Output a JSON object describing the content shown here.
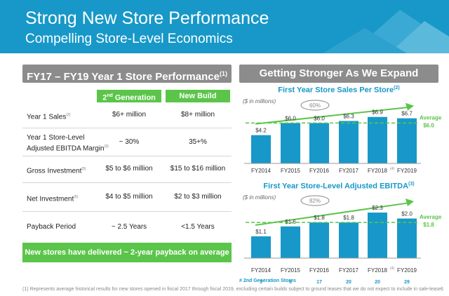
{
  "header": {
    "title": "Strong New Store Performance",
    "subtitle": "Compelling Store-Level Economics"
  },
  "left_panel": {
    "title": "FY17 – FY19 Year 1 Store Performance",
    "title_note": "(1)",
    "col_a": {
      "text": "2",
      "sup": "nd",
      "rest": " Generation"
    },
    "col_b": "New Build",
    "rows": [
      {
        "label": "Year 1 Sales",
        "note": "(2)",
        "a": "$6+ million",
        "b": "$8+ million"
      },
      {
        "label": "Year 1 Store-Level",
        "label2": "Adjusted EBITDA Margin",
        "note": "(3)",
        "a": "~ 30%",
        "b": "35+%"
      },
      {
        "label": "Gross Investment",
        "note": "(5)",
        "a": "$5 to $6 million",
        "b": "$15 to $16 million"
      },
      {
        "label": "Net Investment",
        "note": "(5)",
        "a": "$4 to $5 million",
        "b": "$2 to $3 million"
      },
      {
        "label": "Payback Period",
        "note": "",
        "a": "~ 2.5 Years",
        "b": "<1.5 Years"
      }
    ],
    "callout": "New stores have delivered ~ 2-year payback on average"
  },
  "right_panel": {
    "title": "Getting Stronger As We Expand"
  },
  "chart_data": [
    {
      "type": "bar",
      "title": "First Year Store Sales Per Store",
      "title_note": "(2)",
      "unit_label": "($ in millions)",
      "categories": [
        "FY2014",
        "FY2015",
        "FY2016",
        "FY2017",
        "FY2018",
        "FY2019"
      ],
      "category_notes": [
        "",
        "",
        "",
        "",
        "(4)",
        ""
      ],
      "values": [
        4.2,
        6.0,
        6.0,
        6.3,
        6.9,
        6.7
      ],
      "value_labels": [
        "$4.2",
        "$6.0",
        "$6.0",
        "$6.3",
        "$6.9",
        "$6.7"
      ],
      "ylim": [
        0,
        7.6
      ],
      "average_value": 6.0,
      "average_label": "Average",
      "average_value_label": "$6.0",
      "growth_label": "60%",
      "bar_color": "#1798c8",
      "average_color": "#5bc54a"
    },
    {
      "type": "bar",
      "title": "First Year Store-Level Adjusted EBITDA",
      "title_note": "(3)",
      "unit_label": "($ in millions)",
      "categories": [
        "FY2014",
        "FY2015",
        "FY2016",
        "FY2017",
        "FY2018",
        "FY2019"
      ],
      "category_notes": [
        "",
        "",
        "",
        "",
        "(4)",
        ""
      ],
      "values": [
        1.1,
        1.6,
        1.8,
        1.8,
        2.3,
        2.0
      ],
      "value_labels": [
        "$1.1",
        "$1.6",
        "$1.8",
        "$1.8",
        "$2.3",
        "$2.0"
      ],
      "ylim": [
        0,
        2.55
      ],
      "average_value": 1.8,
      "average_label": "Average",
      "average_value_label": "$1.8",
      "growth_label": "82%",
      "bar_color": "#1798c8",
      "average_color": "#5bc54a"
    }
  ],
  "generation_stores": {
    "label": "# 2nd Generation Stores",
    "counts": [
      "3",
      "6",
      "17",
      "20",
      "20",
      "29"
    ]
  },
  "footnote": "(1)   Represents average historical results for new stores opened in fiscal 2017 through fiscal 2019, excluding certain builds subject to ground leases that we do not expect to include in sale-leaseback transactions as well as the relocation of our largest volume store."
}
